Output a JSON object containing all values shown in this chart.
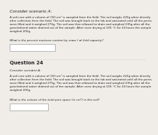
{
  "bg_color": "#f0ede8",
  "title1": "Consider scenario A:",
  "body1": "A soil core with a volume of 150 cm³ is sampled from the field. The soil weighs 220g when directly\nafter collection from the field. The soil was brought back to the lab and saturated until all the pores\nwere filled and it weighed 275g. The soil was then allowed to drain and weighed 235g after all the\ngravitational water drained out of the sample. After oven drying at 105 °C for 24 hours the sample\nweighed 200g.",
  "question1": "What is the percent moisture content by mass ( at field capacity?",
  "title2": "Question 24",
  "subtitle2": "Consider scenárió A:",
  "body2": "A soil core with a volume of 150 cm³ is sampled from the field. The soil weighs 220g when directly\nafter collection from the field. The soil was brought back to the lab and saturated until all the pores\nwere filled and it weighed 275g. The soil was then allowed to drain and weighed 235g after all the\ngravitational water drained out of the sample. After oven drying at 105 °C for 24 hours the sample\nweighed 200g.",
  "question2": "What is the volume of the total pore space (in cm³) in this soil?",
  "text_color": "#222222",
  "box_color": "#ffffff",
  "box_border": "#999999",
  "font_size_title1": 4.2,
  "font_size_body": 3.0,
  "font_size_q24": 5.0,
  "font_size_subtitle2": 3.2
}
